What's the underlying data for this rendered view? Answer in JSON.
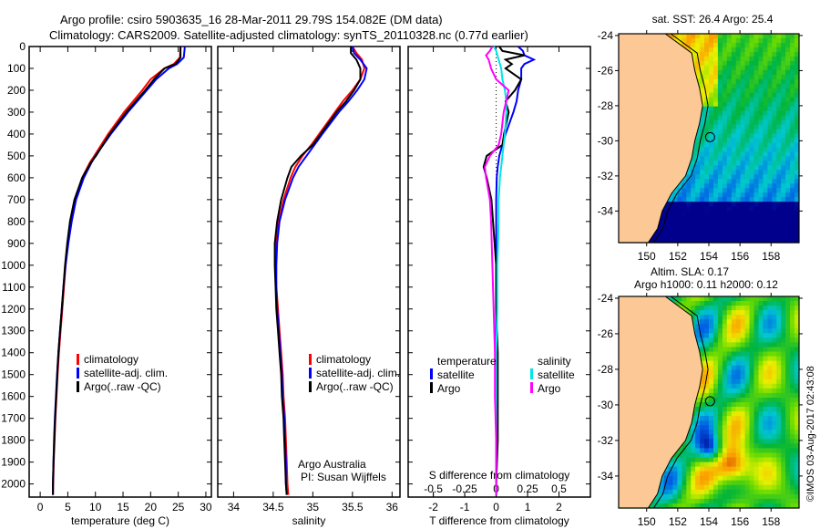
{
  "header": {
    "line1": "Argo profile: csiro 5903635_16 28-Mar-2011 29.79S 154.082E (DM data)",
    "line2": "Climatology: CARS2009. Satellite-adjusted climatology: synTS_20110328.nc (0.77d earlier)"
  },
  "colors": {
    "climatology": "#ff0000",
    "satellite": "#0000ff",
    "argo": "#000000",
    "sal_satellite": "#00e5e5",
    "sal_argo": "#ff00ff",
    "land": "#fcc896"
  },
  "credit": "©IMOS 03-Aug-2017 02:43:08",
  "chart_data": [
    {
      "type": "line",
      "name": "temperature-profile",
      "xlabel": "temperature (deg C)",
      "ylabel": "",
      "xlim": [
        -2,
        31
      ],
      "ylim": [
        2060,
        0
      ],
      "xticks": [
        0,
        5,
        10,
        15,
        20,
        25,
        30
      ],
      "yticks": [
        0,
        100,
        200,
        300,
        400,
        500,
        600,
        700,
        800,
        900,
        1000,
        1100,
        1200,
        1300,
        1400,
        1500,
        1600,
        1700,
        1800,
        1900,
        2000
      ],
      "legend": {
        "placement": "center-left",
        "entries": [
          "climatology",
          "satellite-adj. clim.",
          "Argo(..raw -QC)"
        ]
      },
      "depth": [
        0,
        50,
        80,
        100,
        150,
        200,
        300,
        400,
        500,
        530,
        600,
        700,
        800,
        900,
        1000,
        1100,
        1200,
        1300,
        1400,
        1500,
        1600,
        1700,
        1800,
        1900,
        2000,
        2050
      ],
      "series": [
        {
          "name": "climatology",
          "color": "climatology",
          "values": [
            25.4,
            25.3,
            24.2,
            22.5,
            20.0,
            18.5,
            15.2,
            12.3,
            9.8,
            9.0,
            7.6,
            6.3,
            5.6,
            5.0,
            4.6,
            4.3,
            4.0,
            3.7,
            3.4,
            3.15,
            2.95,
            2.75,
            2.6,
            2.45,
            2.35,
            2.3
          ]
        },
        {
          "name": "satellite-adj. clim.",
          "color": "satellite",
          "values": [
            26.2,
            26.0,
            24.8,
            23.3,
            21.0,
            19.3,
            15.9,
            12.8,
            10.0,
            9.3,
            7.9,
            6.5,
            5.7,
            5.1,
            4.6,
            4.2,
            3.9,
            3.6,
            3.3,
            3.05,
            2.85,
            2.65,
            2.5,
            2.4,
            2.3,
            2.3
          ]
        },
        {
          "name": "Argo(..raw -QC)",
          "color": "argo",
          "values": [
            25.4,
            25.4,
            24.5,
            22.5,
            20.6,
            19.0,
            15.6,
            12.6,
            10.1,
            9.2,
            7.6,
            6.2,
            5.4,
            4.9,
            4.5,
            4.2,
            3.9,
            3.6,
            3.3,
            3.1,
            2.9,
            2.7,
            2.55,
            2.4,
            2.3,
            2.3
          ]
        }
      ]
    },
    {
      "type": "line",
      "name": "salinity-profile",
      "xlabel": "salinity",
      "xlim": [
        33.8,
        36.1
      ],
      "ylim": [
        2060,
        0
      ],
      "xticks": [
        34,
        34.5,
        35,
        35.5,
        36
      ],
      "legend": {
        "placement": "center-right",
        "entries": [
          "climatology",
          "satellite-adj. clim.",
          "Argo(..raw -QC)"
        ]
      },
      "annotation": [
        "Argo Australia",
        "PI: Susan Wijffels"
      ],
      "depth": [
        0,
        30,
        60,
        100,
        150,
        200,
        250,
        300,
        400,
        450,
        500,
        550,
        600,
        700,
        800,
        900,
        1000,
        1100,
        1200,
        1300,
        1400,
        1500,
        1600,
        1700,
        1800,
        1900,
        2000,
        2050
      ],
      "series": [
        {
          "name": "climatology",
          "color": "climatology",
          "values": [
            35.5,
            35.55,
            35.62,
            35.65,
            35.6,
            35.5,
            35.38,
            35.28,
            35.08,
            34.98,
            34.87,
            34.78,
            34.72,
            34.63,
            34.57,
            34.54,
            34.53,
            34.54,
            34.56,
            34.58,
            34.6,
            34.62,
            34.63,
            34.65,
            34.66,
            34.67,
            34.68,
            34.69
          ]
        },
        {
          "name": "satellite-adj. clim.",
          "color": "satellite",
          "values": [
            35.5,
            35.52,
            35.6,
            35.68,
            35.65,
            35.56,
            35.45,
            35.33,
            35.12,
            35.02,
            34.92,
            34.82,
            34.75,
            34.65,
            34.58,
            34.55,
            34.54,
            34.54,
            34.55,
            34.57,
            34.59,
            34.61,
            34.62,
            34.64,
            34.65,
            34.66,
            34.66,
            34.67
          ]
        },
        {
          "name": "Argo(..raw -QC)",
          "color": "argo",
          "values": [
            35.48,
            35.48,
            35.55,
            35.6,
            35.6,
            35.52,
            35.42,
            35.3,
            35.1,
            35.0,
            34.85,
            34.73,
            34.68,
            34.6,
            34.55,
            34.52,
            34.52,
            34.53,
            34.54,
            34.56,
            34.58,
            34.6,
            34.61,
            34.63,
            34.64,
            34.65,
            34.66,
            34.67
          ]
        }
      ]
    },
    {
      "type": "line",
      "name": "difference-profile",
      "xlabel": "T difference from climatology",
      "x2label": "S difference from climatology",
      "xlim": [
        -2.8,
        3.0
      ],
      "x2lim": [
        -0.7,
        0.75
      ],
      "ylim": [
        2060,
        0
      ],
      "xticks": [
        -2,
        -1,
        0,
        1,
        2
      ],
      "x2ticks": [
        -0.5,
        -0.25,
        0,
        0.25,
        0.5
      ],
      "legend": {
        "placement": "center",
        "groups": [
          {
            "title": "temperature",
            "entries": [
              {
                "label": "satellite",
                "color": "satellite"
              },
              {
                "label": "Argo",
                "color": "argo"
              }
            ]
          },
          {
            "title": "salinity",
            "entries": [
              {
                "label": "satellite",
                "color": "sal_satellite"
              },
              {
                "label": "Argo",
                "color": "sal_argo"
              }
            ]
          }
        ]
      },
      "depth": [
        0,
        20,
        40,
        60,
        80,
        100,
        150,
        200,
        250,
        300,
        400,
        450,
        500,
        550,
        600,
        700,
        800,
        1000,
        1200,
        1400,
        1600,
        1800,
        2000,
        2050
      ],
      "series": [
        {
          "name": "temperature satellite",
          "color": "satellite",
          "axis": "T",
          "values": [
            0.7,
            0.85,
            0.9,
            1.2,
            0.9,
            0.8,
            0.8,
            0.7,
            0.65,
            0.55,
            0.3,
            0.2,
            0.1,
            0.05,
            0.02,
            0.0,
            0.0,
            0.0,
            0.0,
            0.0,
            0.0,
            0.0,
            0.0,
            0.0
          ]
        },
        {
          "name": "temperature Argo",
          "color": "argo",
          "axis": "T",
          "values": [
            0.1,
            0.2,
            0.9,
            0.3,
            0.5,
            0.3,
            0.8,
            0.6,
            0.3,
            0.4,
            0.25,
            0.2,
            -0.3,
            -0.4,
            -0.3,
            -0.15,
            -0.1,
            0.0,
            0.0,
            0.05,
            0.05,
            0.05,
            0.0,
            0.0
          ]
        },
        {
          "name": "salinity satellite",
          "color": "sal_satellite",
          "axis": "S",
          "values": [
            -0.02,
            0.0,
            0.01,
            0.02,
            0.03,
            0.04,
            0.05,
            0.07,
            0.08,
            0.08,
            0.07,
            0.06,
            0.05,
            0.04,
            0.03,
            0.02,
            0.02,
            0.01,
            0.01,
            0.0,
            0.0,
            0.0,
            0.0,
            0.0
          ]
        },
        {
          "name": "salinity Argo",
          "color": "sal_argo",
          "axis": "S",
          "values": [
            -0.03,
            -0.05,
            -0.08,
            -0.06,
            -0.05,
            -0.04,
            0.0,
            0.1,
            0.08,
            0.06,
            0.04,
            0.02,
            -0.05,
            -0.09,
            -0.08,
            -0.05,
            -0.04,
            -0.03,
            -0.02,
            -0.01,
            -0.01,
            0.0,
            0.0,
            0.0
          ]
        }
      ]
    },
    {
      "type": "heatmap",
      "name": "sst-map",
      "title": "sat. SST: 26.4 Argo: 25.4",
      "xlim": [
        148.2,
        159.8
      ],
      "ylim": [
        -35.8,
        -23.9
      ],
      "xticks": [
        150,
        152,
        154,
        156,
        158
      ],
      "yticks": [
        -24,
        -26,
        -28,
        -30,
        -32,
        -34
      ],
      "marker": {
        "lon": 154.08,
        "lat": -29.79
      }
    },
    {
      "type": "heatmap",
      "name": "sla-map",
      "title": "Altim. SLA: 0.17",
      "subtitle": "Argo h1000: 0.11 h2000: 0.12",
      "xlim": [
        148.2,
        159.8
      ],
      "ylim": [
        -35.8,
        -23.9
      ],
      "xticks": [
        150,
        152,
        154,
        156,
        158
      ],
      "yticks": [
        -24,
        -26,
        -28,
        -30,
        -32,
        -34
      ],
      "marker": {
        "lon": 154.08,
        "lat": -29.79
      }
    }
  ]
}
